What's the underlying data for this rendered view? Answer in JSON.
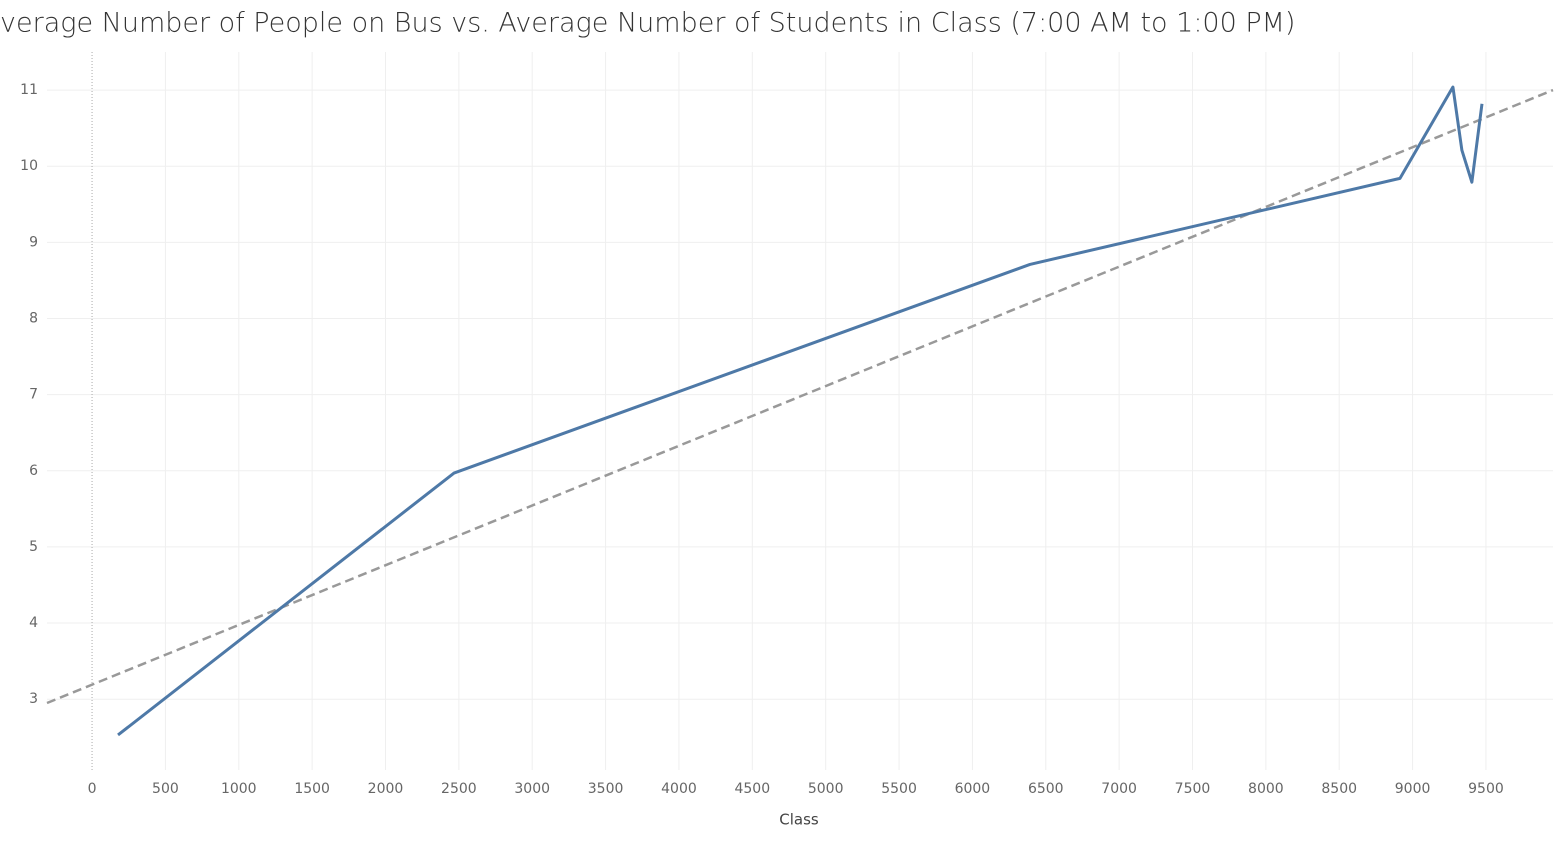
{
  "chart_data": {
    "type": "line",
    "title": "verage Number of People on Bus vs. Average Number of Students in Class (7:00 AM to 1:00 PM)",
    "x_label": "Class",
    "x": [
      177,
      2467,
      6392,
      8914,
      9275,
      9336,
      9404,
      9473
    ],
    "series": [
      {
        "color": "#4e79a7",
        "values": [
          2.53,
          5.97,
          8.71,
          9.84,
          11.04,
          10.21,
          9.79,
          10.82
        ]
      }
    ],
    "trend_line": {
      "color": "#999999",
      "x": [
        -307,
        9957
      ],
      "values": [
        2.95,
        11.0
      ]
    },
    "xlim": [
      -307,
      9957
    ],
    "ylim": [
      2.07,
      11.5
    ],
    "xticks": [
      0,
      500,
      1000,
      1500,
      2000,
      2500,
      3000,
      3500,
      4000,
      4500,
      5000,
      5500,
      6000,
      6500,
      7000,
      7500,
      8000,
      8500,
      9000,
      9500
    ],
    "yticks": [
      3,
      4,
      5,
      6,
      7,
      8,
      9,
      10,
      11
    ],
    "grid": true
  }
}
